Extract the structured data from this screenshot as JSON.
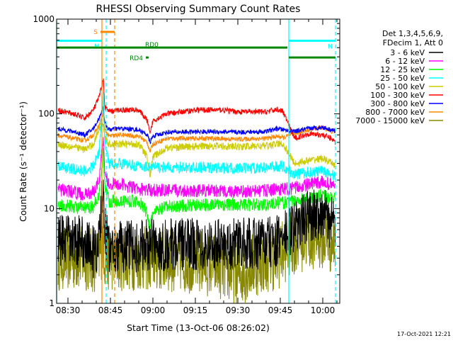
{
  "chart_data": {
    "type": "line",
    "title": "RHESSI Observing Summary Count Rates",
    "xlabel": "Start Time (13-Oct-06 08:26:02)",
    "ylabel": "Count Rate (s⁻¹ detector⁻¹)",
    "yscale": "log",
    "ylim": [
      1,
      1000
    ],
    "xlim_minutes": [
      506,
      606
    ],
    "x_ticks": [
      {
        "t": 510,
        "label": "08:30"
      },
      {
        "t": 525,
        "label": "08:45"
      },
      {
        "t": 540,
        "label": "09:00"
      },
      {
        "t": 555,
        "label": "09:15"
      },
      {
        "t": 570,
        "label": "09:30"
      },
      {
        "t": 585,
        "label": "09:45"
      },
      {
        "t": 600,
        "label": "10:00"
      }
    ],
    "y_ticks": [
      {
        "v": 1,
        "label": "1"
      },
      {
        "v": 10,
        "label": "10"
      },
      {
        "v": 100,
        "label": "100"
      },
      {
        "v": 1000,
        "label": "1000"
      }
    ],
    "legend_header": [
      "Det 1,3,4,5,6,9,",
      "FDecim 1, Att 0"
    ],
    "legend_position": "right",
    "series": [
      {
        "name": "3 - 6 keV",
        "color": "#000000",
        "points": [
          [
            506,
            4.5
          ],
          [
            516,
            4.5
          ],
          [
            519,
            3.5
          ],
          [
            521,
            4.5
          ],
          [
            522.5,
            20
          ],
          [
            523,
            6
          ],
          [
            524.5,
            4
          ],
          [
            528,
            4
          ],
          [
            529,
            4
          ],
          [
            535,
            4
          ],
          [
            545,
            4.2
          ],
          [
            560,
            4.2
          ],
          [
            570,
            4.2
          ],
          [
            580,
            4.3
          ],
          [
            584,
            4.5
          ],
          [
            586,
            5
          ],
          [
            590,
            6.5
          ],
          [
            595,
            8.5
          ],
          [
            600,
            9
          ],
          [
            603,
            7
          ],
          [
            604.5,
            6.5
          ]
        ],
        "noise": 0.28
      },
      {
        "name": "6 - 12 keV",
        "color": "#ff00ff",
        "points": [
          [
            506,
            16
          ],
          [
            512,
            15
          ],
          [
            516,
            14
          ],
          [
            519,
            15
          ],
          [
            521,
            20
          ],
          [
            522.5,
            60
          ],
          [
            523,
            25
          ],
          [
            524.5,
            18
          ],
          [
            528,
            18
          ],
          [
            529,
            18
          ],
          [
            535,
            16
          ],
          [
            545,
            15.5
          ],
          [
            560,
            15.5
          ],
          [
            570,
            15
          ],
          [
            580,
            15.5
          ],
          [
            584,
            16
          ],
          [
            586,
            16
          ],
          [
            590,
            16.5
          ],
          [
            595,
            18
          ],
          [
            600,
            19
          ],
          [
            603,
            18
          ],
          [
            604.5,
            17.5
          ]
        ],
        "noise": 0.07
      },
      {
        "name": "12 - 25 keV",
        "color": "#00ff00",
        "points": [
          [
            506,
            11
          ],
          [
            512,
            10.5
          ],
          [
            516,
            10
          ],
          [
            519,
            10.5
          ],
          [
            521,
            14
          ],
          [
            522.5,
            40
          ],
          [
            523,
            18
          ],
          [
            524.5,
            12
          ],
          [
            528,
            12
          ],
          [
            529,
            12
          ],
          [
            535,
            12
          ],
          [
            538,
            9
          ],
          [
            539,
            6
          ],
          [
            540,
            9
          ],
          [
            545,
            10.5
          ],
          [
            560,
            11
          ],
          [
            570,
            11
          ],
          [
            580,
            11
          ],
          [
            584,
            11.5
          ],
          [
            586,
            11.5
          ],
          [
            590,
            12
          ],
          [
            595,
            13
          ],
          [
            600,
            14
          ],
          [
            603,
            13
          ],
          [
            604.5,
            12.5
          ]
        ],
        "noise": 0.07
      },
      {
        "name": "25 - 50 keV",
        "color": "#00ffff",
        "points": [
          [
            506,
            28
          ],
          [
            512,
            26
          ],
          [
            516,
            25
          ],
          [
            519,
            28
          ],
          [
            521,
            40
          ],
          [
            522.5,
            150
          ],
          [
            523,
            50
          ],
          [
            524.5,
            30
          ],
          [
            528,
            30
          ],
          [
            529,
            30
          ],
          [
            535,
            28
          ],
          [
            545,
            27
          ],
          [
            560,
            27
          ],
          [
            570,
            26.5
          ],
          [
            580,
            27
          ],
          [
            584,
            28
          ],
          [
            586,
            28
          ],
          [
            590,
            23
          ],
          [
            595,
            24
          ],
          [
            600,
            25
          ],
          [
            603,
            23
          ],
          [
            604.5,
            22
          ]
        ],
        "noise": 0.06
      },
      {
        "name": "50 - 100 keV",
        "color": "#cccc00",
        "points": [
          [
            506,
            48
          ],
          [
            512,
            45
          ],
          [
            516,
            42
          ],
          [
            519,
            48
          ],
          [
            521,
            70
          ],
          [
            522.5,
            80
          ],
          [
            523,
            55
          ],
          [
            524.5,
            48
          ],
          [
            528,
            48
          ],
          [
            529,
            48
          ],
          [
            535,
            48
          ],
          [
            538,
            35
          ],
          [
            539,
            22
          ],
          [
            540,
            35
          ],
          [
            545,
            44
          ],
          [
            560,
            46
          ],
          [
            570,
            45
          ],
          [
            580,
            46
          ],
          [
            584,
            48
          ],
          [
            586,
            48
          ],
          [
            590,
            30
          ],
          [
            595,
            32
          ],
          [
            600,
            34
          ],
          [
            603,
            30
          ],
          [
            604.5,
            29
          ]
        ],
        "noise": 0.04
      },
      {
        "name": "100 - 300 keV",
        "color": "#ff0000",
        "points": [
          [
            506,
            110
          ],
          [
            512,
            100
          ],
          [
            516,
            90
          ],
          [
            519,
            110
          ],
          [
            521,
            150
          ],
          [
            522.5,
            230
          ],
          [
            523,
            120
          ],
          [
            524.5,
            105
          ],
          [
            528,
            110
          ],
          [
            529,
            110
          ],
          [
            535,
            110
          ],
          [
            538,
            85
          ],
          [
            539,
            60
          ],
          [
            540,
            85
          ],
          [
            545,
            100
          ],
          [
            555,
            110
          ],
          [
            565,
            110
          ],
          [
            570,
            105
          ],
          [
            580,
            105
          ],
          [
            584,
            112
          ],
          [
            586,
            105
          ],
          [
            590,
            55
          ],
          [
            595,
            62
          ],
          [
            600,
            60
          ],
          [
            603,
            55
          ],
          [
            604.5,
            50
          ]
        ],
        "noise": 0.03
      },
      {
        "name": "300 - 800 keV",
        "color": "#0000ff",
        "points": [
          [
            506,
            70
          ],
          [
            512,
            65
          ],
          [
            516,
            60
          ],
          [
            519,
            70
          ],
          [
            521,
            90
          ],
          [
            522.5,
            120
          ],
          [
            523,
            80
          ],
          [
            524.5,
            68
          ],
          [
            528,
            70
          ],
          [
            529,
            70
          ],
          [
            535,
            68
          ],
          [
            538,
            60
          ],
          [
            539,
            50
          ],
          [
            540,
            58
          ],
          [
            545,
            64
          ],
          [
            560,
            65
          ],
          [
            570,
            64
          ],
          [
            580,
            65
          ],
          [
            584,
            70
          ],
          [
            586,
            68
          ],
          [
            590,
            65
          ],
          [
            595,
            70
          ],
          [
            600,
            72
          ],
          [
            603,
            68
          ],
          [
            604.5,
            66
          ]
        ],
        "noise": 0.025
      },
      {
        "name": "800 - 7000 keV",
        "color": "#ff8800",
        "points": [
          [
            506,
            60
          ],
          [
            512,
            55
          ],
          [
            516,
            52
          ],
          [
            519,
            60
          ],
          [
            521,
            75
          ],
          [
            522.5,
            100
          ],
          [
            523,
            68
          ],
          [
            524.5,
            58
          ],
          [
            528,
            60
          ],
          [
            529,
            60
          ],
          [
            535,
            58
          ],
          [
            538,
            50
          ],
          [
            539,
            40
          ],
          [
            540,
            48
          ],
          [
            545,
            55
          ],
          [
            560,
            55
          ],
          [
            570,
            54
          ],
          [
            580,
            55
          ],
          [
            584,
            58
          ],
          [
            586,
            56
          ],
          [
            590,
            62
          ],
          [
            595,
            68
          ],
          [
            600,
            72
          ],
          [
            603,
            66
          ],
          [
            604.5,
            64
          ]
        ],
        "noise": 0.025
      },
      {
        "name": "7000 - 15000 keV",
        "color": "#888800",
        "points": [
          [
            506,
            3
          ],
          [
            516,
            3
          ],
          [
            519,
            2.8
          ],
          [
            521,
            3
          ],
          [
            522.5,
            5
          ],
          [
            523,
            3
          ],
          [
            524.5,
            3
          ],
          [
            528,
            3
          ],
          [
            529,
            3
          ],
          [
            535,
            3
          ],
          [
            545,
            2.9
          ],
          [
            555,
            2.8
          ],
          [
            563,
            2.5
          ],
          [
            570,
            2
          ],
          [
            575,
            2.5
          ],
          [
            580,
            2.9
          ],
          [
            584,
            3
          ],
          [
            586,
            3.5
          ],
          [
            590,
            4.5
          ],
          [
            595,
            5
          ],
          [
            600,
            5
          ],
          [
            603,
            4.5
          ],
          [
            604.5,
            4.2
          ]
        ],
        "noise": 0.35
      }
    ],
    "flag_bars": [
      {
        "label": "S",
        "color": "#ff8800",
        "x0": 521.5,
        "x1": 526.5,
        "y_frac": 0.045
      },
      {
        "label": "N",
        "color": "#00ffff",
        "x0": 506,
        "x1": 522,
        "y_frac": 0.076
      },
      {
        "label": "N",
        "color": "#00ffff",
        "x0": 588,
        "x1": 604.5,
        "y_frac": 0.076
      },
      {
        "label": "RD0",
        "color": "#008800",
        "x0": 506,
        "x1": 587.5,
        "y_frac": 0.1
      },
      {
        "label": "RD4",
        "color": "#008800",
        "x0": 537.5,
        "x1": 538.5,
        "y_frac": 0.135
      },
      {
        "label": "",
        "color": "#008800",
        "x0": 588,
        "x1": 604.5,
        "y_frac": 0.135
      }
    ],
    "vlines": [
      {
        "x": 506,
        "color": "#00ffff",
        "dash": false
      },
      {
        "x": 522,
        "color": "#ff8800",
        "dash": false
      },
      {
        "x": 523.5,
        "color": "#00ffff",
        "dash": true
      },
      {
        "x": 526.5,
        "color": "#ff8800",
        "dash": true
      },
      {
        "x": 588,
        "color": "#00ffff",
        "dash": false
      },
      {
        "x": 604.5,
        "color": "#00ffff",
        "dash": true
      }
    ],
    "stamp": "17-Oct-2021 12:21"
  }
}
